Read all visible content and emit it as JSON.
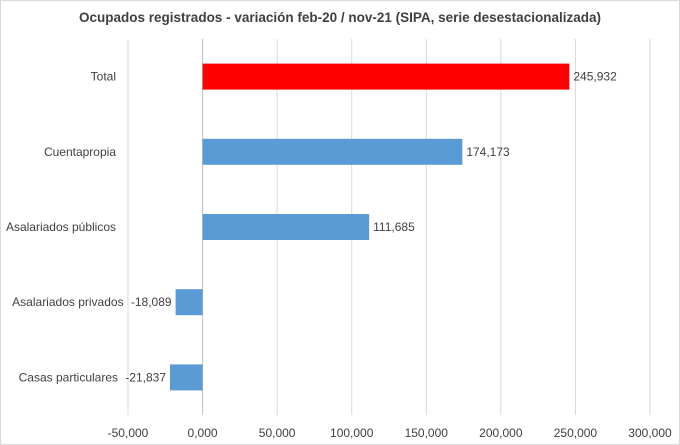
{
  "chart_data": {
    "type": "bar",
    "orientation": "horizontal",
    "title": "Ocupados registrados  - variación  feb-20 / nov-21 (SIPA, serie desestacionalizada)",
    "categories": [
      "Total",
      "Cuentapropia",
      "Asalariados públicos",
      "Asalariados privados",
      "Casas particulares"
    ],
    "values": [
      245932,
      174173,
      111685,
      -18089,
      -21837
    ],
    "data_labels": [
      "245,932",
      "174,173",
      "111,685",
      "-18,089",
      "-21,837"
    ],
    "colors": [
      "#ff0000",
      "#5b9bd5",
      "#5b9bd5",
      "#5b9bd5",
      "#5b9bd5"
    ],
    "xlim": [
      -50000,
      300000
    ],
    "xticks": [
      -50000,
      0,
      50000,
      100000,
      150000,
      200000,
      250000,
      300000
    ],
    "xtick_labels": [
      "-50,000",
      "0,000",
      "50,000",
      "100,000",
      "150,000",
      "200,000",
      "250,000",
      "300,000"
    ],
    "grid": true,
    "xlabel": "",
    "ylabel": ""
  }
}
